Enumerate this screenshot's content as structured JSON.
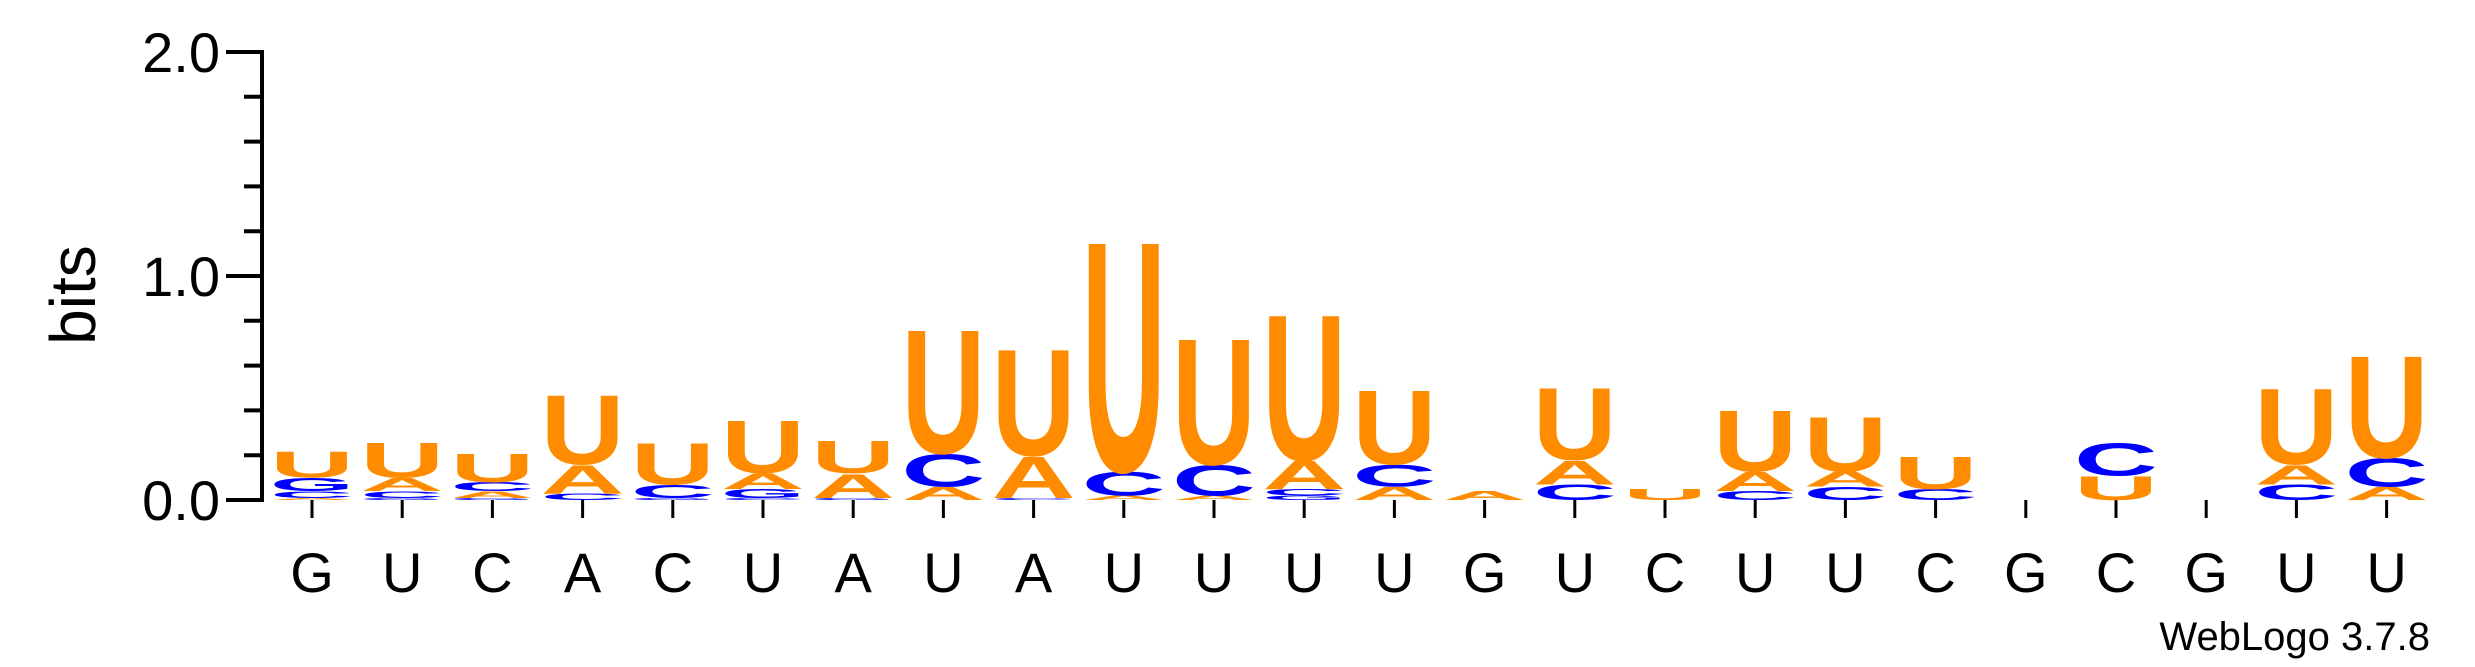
{
  "chart_data": {
    "type": "sequence-logo",
    "ylabel": "bits",
    "ylim": [
      0,
      2.0
    ],
    "yticks": [
      {
        "value": 0.0,
        "label": "0.0"
      },
      {
        "value": 1.0,
        "label": "1.0"
      },
      {
        "value": 2.0,
        "label": "2.0"
      }
    ],
    "x_tick_labels": [
      "G",
      "U",
      "C",
      "A",
      "C",
      "U",
      "A",
      "U",
      "A",
      "U",
      "U",
      "U",
      "U",
      "G",
      "U",
      "C",
      "U",
      "U",
      "C",
      "G",
      "C",
      "G",
      "U",
      "U"
    ],
    "colors": {
      "U": "#ff8c00",
      "A": "#ff8c00",
      "C": "#0000ff",
      "G": "#0000ff"
    },
    "stacks": [
      [
        [
          "A",
          0.01
        ],
        [
          "C",
          0.03
        ],
        [
          "G",
          0.06
        ],
        [
          "U",
          0.12
        ]
      ],
      [
        [
          "G",
          0.01
        ],
        [
          "C",
          0.03
        ],
        [
          "A",
          0.06
        ],
        [
          "U",
          0.16
        ]
      ],
      [
        [
          "G",
          0.01
        ],
        [
          "A",
          0.03
        ],
        [
          "C",
          0.04
        ],
        [
          "U",
          0.13
        ]
      ],
      [
        [
          "C",
          0.03
        ],
        [
          "A",
          0.13
        ],
        [
          "U",
          0.32
        ]
      ],
      [
        [
          "G",
          0.01
        ],
        [
          "C",
          0.06
        ],
        [
          "U",
          0.19
        ]
      ],
      [
        [
          "C",
          0.01
        ],
        [
          "G",
          0.04
        ],
        [
          "A",
          0.07
        ],
        [
          "U",
          0.24
        ]
      ],
      [
        [
          "G",
          0.01
        ],
        [
          "A",
          0.11
        ],
        [
          "U",
          0.15
        ]
      ],
      [
        [
          "A",
          0.06
        ],
        [
          "C",
          0.15
        ],
        [
          "U",
          0.57
        ]
      ],
      [
        [
          "C",
          0.01
        ],
        [
          "A",
          0.19
        ],
        [
          "U",
          0.49
        ]
      ],
      [
        [
          "A",
          0.02
        ],
        [
          "C",
          0.11
        ],
        [
          "U",
          1.06
        ]
      ],
      [
        [
          "A",
          0.02
        ],
        [
          "C",
          0.14
        ],
        [
          "U",
          0.58
        ]
      ],
      [
        [
          "G",
          0.02
        ],
        [
          "C",
          0.03
        ],
        [
          "A",
          0.13
        ],
        [
          "U",
          0.67
        ]
      ],
      [
        [
          "A",
          0.06
        ],
        [
          "C",
          0.1
        ],
        [
          "U",
          0.34
        ]
      ],
      [
        [
          "A",
          0.04
        ]
      ],
      [
        [
          "C",
          0.07
        ],
        [
          "A",
          0.11
        ],
        [
          "U",
          0.33
        ]
      ],
      [
        [
          "U",
          0.05
        ]
      ],
      [
        [
          "C",
          0.04
        ],
        [
          "A",
          0.09
        ],
        [
          "U",
          0.28
        ]
      ],
      [
        [
          "C",
          0.06
        ],
        [
          "A",
          0.07
        ],
        [
          "U",
          0.25
        ]
      ],
      [
        [
          "C",
          0.05
        ],
        [
          "U",
          0.15
        ]
      ],
      [],
      [
        [
          "U",
          0.11
        ],
        [
          "C",
          0.15
        ]
      ],
      [],
      [
        [
          "C",
          0.07
        ],
        [
          "A",
          0.09
        ],
        [
          "U",
          0.35
        ]
      ],
      [
        [
          "A",
          0.06
        ],
        [
          "C",
          0.13
        ],
        [
          "U",
          0.47
        ]
      ]
    ]
  },
  "credit": "WebLogo 3.7.8"
}
